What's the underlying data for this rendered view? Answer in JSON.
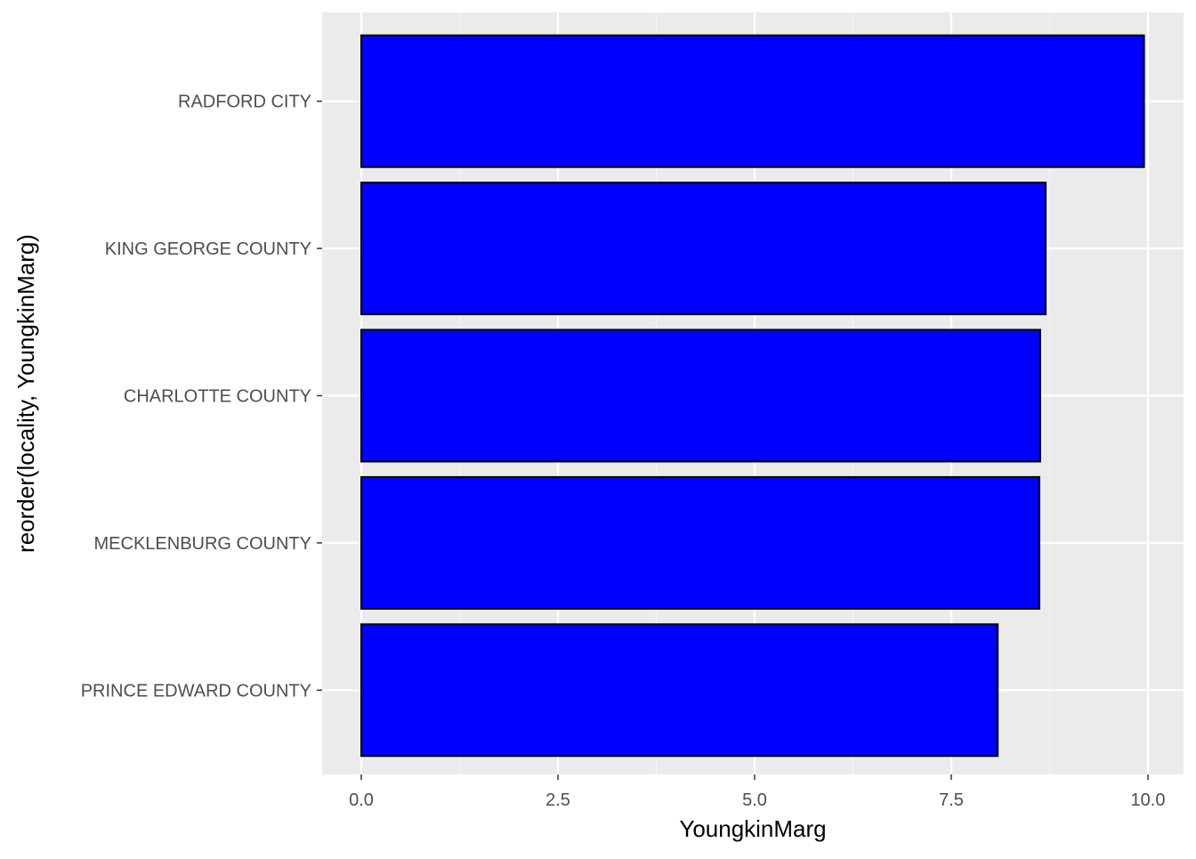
{
  "chart_data": {
    "type": "bar",
    "orientation": "horizontal",
    "title": "",
    "xlabel": "YoungkinMarg",
    "ylabel": "reorder(locality, YoungkinMarg)",
    "categories": [
      "PRINCE EDWARD COUNTY",
      "MECKLENBURG COUNTY",
      "CHARLOTTE COUNTY",
      "KING GEORGE COUNTY",
      "RADFORD CITY"
    ],
    "values": [
      8.09,
      8.62,
      8.63,
      8.7,
      9.95
    ],
    "xlim": [
      0,
      10
    ],
    "x_ticks": [
      {
        "value": 0,
        "label": "0.0"
      },
      {
        "value": 2.5,
        "label": "2.5"
      },
      {
        "value": 5,
        "label": "5.0"
      },
      {
        "value": 7.5,
        "label": "7.5"
      },
      {
        "value": 10,
        "label": "10.0"
      }
    ],
    "grid": true,
    "legend": "none",
    "colors": {
      "bar_fill": "#0000ff",
      "bar_outline": "#000000",
      "panel_background": "#ebebeb",
      "grid_major": "#ffffff",
      "grid_minor": "#f5f5f5",
      "tick_text": "#4d4d4d",
      "axis_title": "#000000"
    }
  }
}
